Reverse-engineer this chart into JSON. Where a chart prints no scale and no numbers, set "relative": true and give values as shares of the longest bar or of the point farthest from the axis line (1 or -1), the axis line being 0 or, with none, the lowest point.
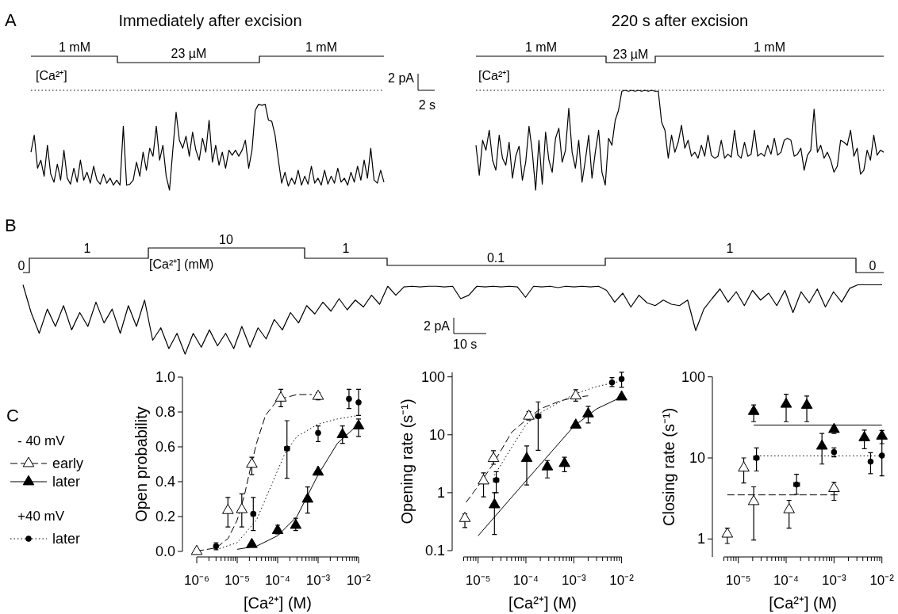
{
  "chart_data": [
    {
      "type": "line",
      "title": "Immediately after excision",
      "relative": true,
      "tick_labels": false,
      "annotations": [
        "A",
        "1 mM",
        "23 µM",
        "1 mM",
        "[Ca²⁺]",
        "2 pA",
        "2 s"
      ],
      "ref_lines": [
        {
          "axis": "y",
          "value": 0,
          "line_style": "dotted"
        }
      ],
      "categories": [
        null,
        null,
        null,
        null,
        null,
        null,
        null,
        null,
        null,
        null,
        null,
        null,
        null,
        null,
        null,
        null,
        null,
        null,
        null,
        null,
        null,
        null,
        null,
        null,
        null,
        null,
        null,
        null,
        null,
        null,
        null,
        null,
        null,
        null,
        null,
        null,
        null,
        null,
        null,
        null,
        null,
        null,
        null,
        null,
        null,
        null,
        null,
        null,
        null,
        null,
        null,
        null,
        null,
        null,
        null,
        null,
        null,
        null,
        null,
        null,
        null,
        null,
        null,
        null,
        null,
        null,
        null,
        null,
        null,
        null,
        null,
        null,
        null,
        null,
        null,
        null,
        null,
        null,
        null,
        null,
        null,
        null,
        null,
        null,
        null,
        null,
        null,
        null,
        null,
        null,
        null,
        null,
        null,
        null,
        null,
        null,
        null,
        null,
        null,
        null,
        null,
        null,
        null,
        null,
        null,
        null,
        null,
        null
      ],
      "series": [
        {
          "type": "line",
          "color": "#000000",
          "values": [
            -0.62,
            -0.45,
            -0.78,
            -0.7,
            -0.86,
            -0.55,
            -0.84,
            -0.92,
            -0.74,
            -0.9,
            -0.6,
            -0.88,
            -0.94,
            -0.78,
            -0.92,
            -0.7,
            -0.9,
            -0.82,
            -0.93,
            -0.76,
            -0.9,
            -0.94,
            -0.84,
            -0.93,
            -0.88,
            -0.95,
            -0.9,
            -0.95,
            -0.36,
            -0.95,
            -0.94,
            -0.9,
            -0.72,
            -0.86,
            -0.62,
            -0.8,
            -0.58,
            -0.66,
            -0.36,
            -0.7,
            -0.55,
            -0.86,
            -1,
            -0.6,
            -0.22,
            -0.5,
            -0.58,
            -0.46,
            -0.66,
            -0.42,
            -0.6,
            -0.7,
            -0.48,
            -0.62,
            -0.3,
            -0.72,
            -0.55,
            -0.75,
            -0.62,
            -0.78,
            -0.6,
            -0.65,
            -0.6,
            -0.66,
            -0.6,
            -0.5,
            -0.78,
            -0.6,
            -0.2,
            -0.14,
            -0.15,
            -0.14,
            -0.3,
            -0.31,
            -0.45,
            -0.7,
            -0.93,
            -0.82,
            -0.96,
            -0.88,
            -0.94,
            -0.8,
            -0.95,
            -0.86,
            -0.94,
            -0.76,
            -0.93,
            -0.88,
            -0.95,
            -0.8,
            -0.94,
            -0.86,
            -0.93,
            -0.78,
            -0.92,
            -0.88,
            -0.95,
            -0.82,
            -0.92,
            -0.76,
            -0.9,
            -0.7,
            -0.88,
            -0.58,
            -0.9,
            -0.93,
            -0.8,
            -0.92
          ]
        }
      ]
    },
    {
      "type": "line",
      "title": "220 s after excision",
      "relative": true,
      "tick_labels": false,
      "annotations": [
        "1 mM",
        "23 µM",
        "1 mM",
        "[Ca²⁺]"
      ],
      "ref_lines": [
        {
          "axis": "y",
          "value": 0,
          "line_style": "dotted"
        }
      ],
      "categories": [
        null,
        null,
        null,
        null,
        null,
        null,
        null,
        null,
        null,
        null,
        null,
        null,
        null,
        null,
        null,
        null,
        null,
        null,
        null,
        null,
        null,
        null,
        null,
        null,
        null,
        null,
        null,
        null,
        null,
        null,
        null,
        null,
        null,
        null,
        null,
        null,
        null,
        null,
        null,
        null,
        null,
        null,
        null,
        null,
        null,
        null,
        null,
        null,
        null,
        null,
        null,
        null,
        null,
        null,
        null,
        null,
        null,
        null,
        null,
        null,
        null,
        null,
        null,
        null,
        null,
        null,
        null,
        null,
        null,
        null,
        null,
        null,
        null,
        null,
        null,
        null,
        null,
        null,
        null,
        null,
        null,
        null,
        null,
        null,
        null,
        null,
        null,
        null,
        null,
        null,
        null,
        null,
        null,
        null,
        null,
        null,
        null,
        null,
        null,
        null,
        null,
        null,
        null,
        null,
        null,
        null,
        null,
        null,
        null,
        null,
        null,
        null,
        null,
        null,
        null,
        null,
        null,
        null,
        null,
        null,
        null,
        null,
        null,
        null
      ],
      "series": [
        {
          "type": "line",
          "color": "#000000",
          "values": [
            -0.55,
            -0.85,
            -0.5,
            -0.6,
            -0.4,
            -0.7,
            -0.8,
            -0.45,
            -0.68,
            -0.75,
            -0.52,
            -0.88,
            -0.66,
            -0.56,
            -0.9,
            -0.72,
            -0.36,
            -0.62,
            -1,
            -0.5,
            -0.94,
            -0.42,
            -0.7,
            -0.82,
            -0.48,
            -0.38,
            -0.72,
            -0.6,
            -0.18,
            -0.62,
            -0.78,
            -0.5,
            -0.92,
            -0.7,
            -0.45,
            -0.88,
            -0.62,
            -0.4,
            -0.82,
            -0.95,
            -0.48,
            -0.55,
            -0.3,
            -0.2,
            -0.01,
            0,
            -0.01,
            0,
            -0.01,
            0,
            -0.01,
            0,
            -0.01,
            0,
            -0.01,
            -0.01,
            -0.32,
            -0.4,
            -0.68,
            -0.45,
            -0.62,
            -0.52,
            -0.35,
            -0.58,
            -0.5,
            -0.66,
            -0.62,
            -0.68,
            -0.55,
            -0.66,
            -0.45,
            -0.65,
            -0.68,
            -0.66,
            -0.5,
            -0.68,
            -0.64,
            -0.67,
            -0.4,
            -0.65,
            -0.68,
            -0.52,
            -0.66,
            -0.64,
            -0.4,
            -0.66,
            -0.63,
            -0.66,
            -0.55,
            -0.64,
            -0.48,
            -0.65,
            -0.62,
            -0.5,
            -0.48,
            -0.5,
            -0.66,
            -0.64,
            -0.58,
            -0.8,
            -0.65,
            -0.6,
            -0.19,
            -0.62,
            -0.55,
            -0.68,
            -0.62,
            -0.7,
            -0.82,
            -0.76,
            -0.5,
            -0.52,
            -0.55,
            -0.4,
            -0.66,
            -0.58,
            -0.84,
            -0.8,
            -0.6,
            -0.7,
            -0.45,
            -0.65,
            -0.6,
            -0.62
          ]
        }
      ]
    },
    {
      "type": "line",
      "relative": true,
      "tick_labels": false,
      "annotations": [
        "B",
        "0",
        "1",
        "10",
        "1",
        "0.1",
        "1",
        "0",
        "[Ca²⁺] (mM)",
        "2 pA",
        "10 s"
      ],
      "categories": [
        null,
        null,
        null,
        null,
        null,
        null,
        null,
        null,
        null,
        null,
        null,
        null,
        null,
        null,
        null,
        null,
        null,
        null,
        null,
        null,
        null,
        null,
        null,
        null,
        null,
        null,
        null,
        null,
        null,
        null,
        null,
        null,
        null,
        null,
        null,
        null,
        null,
        null,
        null,
        null,
        null,
        null,
        null,
        null,
        null,
        null,
        null,
        null,
        null,
        null,
        null,
        null,
        null,
        null,
        null,
        null,
        null,
        null,
        null,
        null,
        null,
        null,
        null,
        null,
        null,
        null,
        null,
        null,
        null,
        null,
        null,
        null,
        null,
        null,
        null,
        null,
        null,
        null,
        null,
        null,
        null,
        null,
        null,
        null,
        null,
        null,
        null,
        null,
        null,
        null,
        null,
        null,
        null,
        null,
        null,
        null,
        null,
        null,
        null,
        null,
        null,
        null,
        null,
        null,
        null,
        null,
        null
      ],
      "series": [
        {
          "type": "line",
          "color": "#000000",
          "values": [
            1,
            0.6,
            0.3,
            0.65,
            0.4,
            0.7,
            0.35,
            0.6,
            0.4,
            0.75,
            0.45,
            0.65,
            0.3,
            0.7,
            0.4,
            0.78,
            0.2,
            0.38,
            0.08,
            0.3,
            0,
            0.3,
            0.1,
            0.35,
            0.12,
            0.3,
            0.08,
            0.4,
            0.1,
            0.38,
            0.22,
            0.5,
            0.35,
            0.6,
            0.45,
            0.7,
            0.58,
            0.75,
            0.62,
            0.8,
            0.64,
            0.78,
            0.68,
            0.85,
            0.72,
            0.98,
            0.85,
            0.97,
            0.98,
            0.97,
            0.98,
            0.98,
            0.97,
            0.98,
            0.8,
            0.85,
            0.98,
            0.97,
            0.98,
            0.97,
            0.98,
            0.97,
            0.82,
            0.98,
            0.97,
            0.98,
            0.96,
            0.98,
            0.97,
            0.98,
            0.97,
            0.98,
            0.92,
            0.75,
            0.88,
            0.68,
            0.85,
            0.74,
            0.7,
            0.78,
            0.72,
            0.7,
            0.78,
            0.34,
            0.65,
            0.8,
            0.94,
            0.75,
            0.9,
            0.7,
            0.92,
            0.78,
            0.88,
            0.7,
            0.92,
            0.6,
            0.9,
            0.74,
            0.94,
            0.68,
            0.9,
            0.75,
            0.95,
            1,
            1,
            1,
            1
          ]
        }
      ]
    },
    {
      "type": "scatter",
      "log": "x",
      "xlabel": "[Ca²⁺] (M)",
      "ylabel": "Open probability",
      "legend": "left",
      "annotations": [
        "C",
        "- 40 mV",
        "+40 mV"
      ],
      "xlim": [
        1e-06,
        0.01
      ],
      "ylim": [
        0,
        1
      ],
      "xticks": [
        {
          "value": 1e-06,
          "label": "10⁻⁶"
        },
        {
          "value": 2e-06,
          "label": null
        },
        {
          "value": 3e-06,
          "label": null
        },
        {
          "value": 4e-06,
          "label": null
        },
        {
          "value": 5e-06,
          "label": null
        },
        {
          "value": 6e-06,
          "label": null
        },
        {
          "value": 7e-06,
          "label": null
        },
        {
          "value": 8e-06,
          "label": null
        },
        {
          "value": 9e-06,
          "label": null
        },
        {
          "value": 1e-05,
          "label": "10⁻⁵"
        },
        {
          "value": 2e-05,
          "label": null
        },
        {
          "value": 3e-05,
          "label": null
        },
        {
          "value": 4e-05,
          "label": null
        },
        {
          "value": 5e-05,
          "label": null
        },
        {
          "value": 6e-05,
          "label": null
        },
        {
          "value": 7e-05,
          "label": null
        },
        {
          "value": 8e-05,
          "label": null
        },
        {
          "value": 9e-05,
          "label": null
        },
        {
          "value": 0.0001,
          "label": "10⁻⁴"
        },
        {
          "value": 0.0002,
          "label": null
        },
        {
          "value": 0.0003,
          "label": null
        },
        {
          "value": 0.0004,
          "label": null
        },
        {
          "value": 0.0005,
          "label": null
        },
        {
          "value": 0.0006,
          "label": null
        },
        {
          "value": 0.0007,
          "label": null
        },
        {
          "value": 0.0008,
          "label": null
        },
        {
          "value": 0.0009,
          "label": null
        },
        {
          "value": 0.001,
          "label": "10⁻³"
        },
        {
          "value": 0.002,
          "label": null
        },
        {
          "value": 0.003,
          "label": null
        },
        {
          "value": 0.004,
          "label": null
        },
        {
          "value": 0.005,
          "label": null
        },
        {
          "value": 0.006,
          "label": null
        },
        {
          "value": 0.007,
          "label": null
        },
        {
          "value": 0.008,
          "label": null
        },
        {
          "value": 0.009,
          "label": null
        },
        {
          "value": 0.01,
          "label": "10⁻²"
        }
      ],
      "yticks": [
        {
          "value": 0,
          "label": "0.0"
        },
        0.2,
        0.4,
        0.6,
        0.8,
        {
          "value": 1,
          "label": "1.0"
        }
      ],
      "series": [
        {
          "name": "early",
          "type": "scatter",
          "marker": "triangle",
          "line_style": "dashed",
          "color": "#ffffff",
          "x": [
            1e-06,
            5.9e-06,
            1.3e-05,
            2.3e-05,
            0.00012,
            0.001
          ],
          "values": [
            0,
            0.235,
            0.24,
            0.5,
            0.88,
            0.89
          ],
          "errors": [
            null,
            [
              0.14,
              0.31
            ],
            [
              0.14,
              0.33
            ],
            [
              0.44,
              0.54
            ],
            [
              0.83,
              0.93
            ],
            [
              0.87,
              0.91
            ]
          ]
        },
        {
          "name": "later",
          "type": "scatter",
          "marker": "triangle",
          "line_style": "solid",
          "color": "#000000",
          "x": [
            2.3e-05,
            0.0001,
            0.00028,
            0.00055,
            0.001,
            0.004,
            0.01
          ],
          "values": [
            0.04,
            0.12,
            0.15,
            0.3,
            0.455,
            0.67,
            0.72
          ],
          "errors": [
            null,
            [
              0.1,
              0.15
            ],
            [
              0.12,
              0.19
            ],
            [
              0.22,
              0.37
            ],
            null,
            [
              0.62,
              0.72
            ],
            [
              0.66,
              0.76
            ]
          ]
        },
        {
          "name": "later",
          "type": "scatter",
          "marker": "circle",
          "line_style": "dotted",
          "color": "#000000",
          "x": [
            3e-06,
            2.5e-05,
            0.00017,
            0.001,
            0.0058,
            0.01
          ],
          "values": [
            0.03,
            0.215,
            0.59,
            0.68,
            0.875,
            0.855
          ],
          "errors": [
            [
              0.01,
              0.05
            ],
            [
              0.12,
              0.31
            ],
            [
              0.42,
              0.75
            ],
            [
              0.63,
              0.72
            ],
            [
              0.82,
              0.93
            ],
            [
              0.78,
              0.93
            ]
          ],
          "xerrors": [
            null,
            [
              2.2e-05,
              2.8e-05
            ],
            [
              0.00015,
              0.000195
            ],
            null,
            null,
            null
          ]
        },
        {
          "type": "line",
          "line_style": "dashed",
          "color": "#000000",
          "x": [
            1e-06,
            3e-06,
            6e-06,
            1e-05,
            1.5e-05,
            2e-05,
            3e-05,
            5e-05,
            0.0001,
            0.0003,
            0.0007
          ],
          "values": [
            0.002,
            0.02,
            0.075,
            0.18,
            0.32,
            0.45,
            0.62,
            0.78,
            0.87,
            0.9,
            0.9
          ]
        },
        {
          "type": "line",
          "line_style": "solid",
          "color": "#000000",
          "x": [
            1e-05,
            3e-05,
            0.0001,
            0.0003,
            0.001,
            0.003,
            0.01
          ],
          "values": [
            0.012,
            0.03,
            0.09,
            0.2,
            0.44,
            0.62,
            0.73
          ]
        },
        {
          "type": "line",
          "line_style": "dotted",
          "color": "#000000",
          "x": [
            3e-06,
            1e-05,
            3e-05,
            7e-05,
            0.00015,
            0.0003,
            0.001,
            0.003,
            0.01
          ],
          "values": [
            0.01,
            0.05,
            0.18,
            0.38,
            0.56,
            0.66,
            0.73,
            0.76,
            0.78
          ]
        }
      ]
    },
    {
      "type": "scatter",
      "log": "xy",
      "xlabel": "[Ca²⁺] (M)",
      "ylabel": "Opening rate (s⁻¹)",
      "xlim": [
        5e-06,
        0.01
      ],
      "ylim": [
        0.1,
        120
      ],
      "xticks": [
        {
          "value": 5e-06,
          "label": null
        },
        {
          "value": 6e-06,
          "label": null
        },
        {
          "value": 7e-06,
          "label": null
        },
        {
          "value": 8e-06,
          "label": null
        },
        {
          "value": 9e-06,
          "label": null
        },
        {
          "value": 1e-05,
          "label": "10⁻⁵"
        },
        {
          "value": 2e-05,
          "label": null
        },
        {
          "value": 3e-05,
          "label": null
        },
        {
          "value": 4e-05,
          "label": null
        },
        {
          "value": 5e-05,
          "label": null
        },
        {
          "value": 6e-05,
          "label": null
        },
        {
          "value": 7e-05,
          "label": null
        },
        {
          "value": 8e-05,
          "label": null
        },
        {
          "value": 9e-05,
          "label": null
        },
        {
          "value": 0.0001,
          "label": "10⁻⁴"
        },
        {
          "value": 0.0002,
          "label": null
        },
        {
          "value": 0.0003,
          "label": null
        },
        {
          "value": 0.0004,
          "label": null
        },
        {
          "value": 0.0005,
          "label": null
        },
        {
          "value": 0.0006,
          "label": null
        },
        {
          "value": 0.0007,
          "label": null
        },
        {
          "value": 0.0008,
          "label": null
        },
        {
          "value": 0.0009,
          "label": null
        },
        {
          "value": 0.001,
          "label": "10⁻³"
        },
        {
          "value": 0.002,
          "label": null
        },
        {
          "value": 0.003,
          "label": null
        },
        {
          "value": 0.004,
          "label": null
        },
        {
          "value": 0.005,
          "label": null
        },
        {
          "value": 0.006,
          "label": null
        },
        {
          "value": 0.007,
          "label": null
        },
        {
          "value": 0.008,
          "label": null
        },
        {
          "value": 0.009,
          "label": null
        },
        {
          "value": 0.01,
          "label": "10⁻²"
        }
      ],
      "yticks": [
        0.1,
        1,
        10,
        100
      ],
      "series": [
        {
          "type": "scatter",
          "marker": "triangle",
          "color": "#ffffff",
          "x": [
            5.3e-06,
            1.3e-05,
            2.1e-05,
            0.000115,
            0.0011
          ],
          "values": [
            0.36,
            1.6,
            3.9,
            21,
            47
          ],
          "errors": [
            [
              0.25,
              0.43
            ],
            [
              0.85,
              2.2
            ],
            [
              3.1,
              5.3
            ],
            [
              18,
              25
            ],
            [
              38,
              60
            ]
          ]
        },
        {
          "type": "scatter",
          "marker": "triangle",
          "color": "#000000",
          "x": [
            2.2e-05,
            0.000104,
            0.00028,
            0.00064,
            0.0011,
            0.002,
            0.01
          ],
          "values": [
            0.62,
            3.9,
            2.8,
            3.2,
            14.7,
            23,
            45
          ],
          "errors": [
            [
              0.19,
              1
            ],
            [
              1.36,
              6.4
            ],
            [
              1.8,
              3.6
            ],
            [
              2.3,
              4.1
            ],
            null,
            [
              16,
              31
            ],
            null
          ]
        },
        {
          "type": "scatter",
          "marker": "circle",
          "color": "#000000",
          "x": [
            2.4e-05,
            0.00018,
            0.0063,
            0.01
          ],
          "values": [
            1.65,
            21,
            80,
            92
          ],
          "errors": [
            [
              1,
              2.3
            ],
            [
              5.4,
              37
            ],
            [
              68,
              97
            ],
            [
              66,
              120
            ]
          ],
          "xerrors": [
            [
              2.1e-05,
              2.7e-05
            ],
            [
              0.00016,
              0.000205
            ],
            null,
            null
          ]
        },
        {
          "type": "line",
          "line_style": "dashed",
          "color": "#000000",
          "x": [
            5.6e-06,
            1e-05,
            2e-05,
            5e-05,
            0.0001,
            0.0002,
            0.0005,
            0.001,
            0.002
          ],
          "values": [
            0.68,
            1.3,
            3,
            11,
            18,
            28,
            38,
            44,
            47
          ]
        },
        {
          "type": "line",
          "line_style": "solid",
          "color": "#000000",
          "x": [
            1e-05,
            0.0001,
            0.001,
            0.003,
            0.01
          ],
          "values": [
            0.18,
            1.6,
            14,
            28,
            45
          ]
        },
        {
          "type": "line",
          "line_style": "dotted",
          "color": "#000000",
          "x": [
            2.2e-05,
            5e-05,
            0.0001,
            0.0002,
            0.001,
            0.003,
            0.01
          ],
          "values": [
            2,
            6,
            15,
            24,
            50,
            68,
            85
          ]
        }
      ]
    },
    {
      "type": "scatter",
      "log": "xy",
      "xlabel": "[Ca²⁺] (M)",
      "ylabel": "Closing rate (s⁻¹)",
      "xlim": [
        5e-06,
        0.01
      ],
      "ylim": [
        0.6,
        100
      ],
      "xticks": [
        {
          "value": 5e-06,
          "label": null
        },
        {
          "value": 6e-06,
          "label": null
        },
        {
          "value": 7e-06,
          "label": null
        },
        {
          "value": 8e-06,
          "label": null
        },
        {
          "value": 9e-06,
          "label": null
        },
        {
          "value": 1e-05,
          "label": "10⁻⁵"
        },
        {
          "value": 2e-05,
          "label": null
        },
        {
          "value": 3e-05,
          "label": null
        },
        {
          "value": 4e-05,
          "label": null
        },
        {
          "value": 5e-05,
          "label": null
        },
        {
          "value": 6e-05,
          "label": null
        },
        {
          "value": 7e-05,
          "label": null
        },
        {
          "value": 8e-05,
          "label": null
        },
        {
          "value": 9e-05,
          "label": null
        },
        {
          "value": 0.0001,
          "label": "10⁻⁴"
        },
        {
          "value": 0.0002,
          "label": null
        },
        {
          "value": 0.0003,
          "label": null
        },
        {
          "value": 0.0004,
          "label": null
        },
        {
          "value": 0.0005,
          "label": null
        },
        {
          "value": 0.0006,
          "label": null
        },
        {
          "value": 0.0007,
          "label": null
        },
        {
          "value": 0.0008,
          "label": null
        },
        {
          "value": 0.0009,
          "label": null
        },
        {
          "value": 0.001,
          "label": "10⁻³"
        },
        {
          "value": 0.002,
          "label": null
        },
        {
          "value": 0.003,
          "label": null
        },
        {
          "value": 0.004,
          "label": null
        },
        {
          "value": 0.005,
          "label": null
        },
        {
          "value": 0.006,
          "label": null
        },
        {
          "value": 0.007,
          "label": null
        },
        {
          "value": 0.008,
          "label": null
        },
        {
          "value": 0.009,
          "label": null
        },
        {
          "value": 0.01,
          "label": "10⁻²"
        }
      ],
      "yticks": [
        1,
        10,
        100
      ],
      "series": [
        {
          "type": "scatter",
          "marker": "triangle",
          "color": "#ffffff",
          "x": [
            5.9e-06,
            1.3e-05,
            2.1e-05,
            0.000115,
            0.001
          ],
          "values": [
            1.15,
            7.5,
            2.9,
            2.3,
            4.2
          ],
          "errors": [
            [
              0.88,
              1.36
            ],
            [
              4.9,
              10
            ],
            [
              0.97,
              4.4
            ],
            [
              1.36,
              3
            ],
            [
              3,
              5
            ]
          ]
        },
        {
          "type": "scatter",
          "marker": "triangle",
          "color": "#000000",
          "x": [
            2.1e-05,
            0.0001,
            0.00027,
            0.00056,
            0.001,
            0.0043,
            0.01
          ],
          "values": [
            37.5,
            46,
            44.7,
            14,
            22.5,
            17.8,
            18.6
          ],
          "errors": [
            [
              28,
              45
            ],
            [
              28,
              61
            ],
            [
              28,
              58
            ],
            [
              8.4,
              20
            ],
            [
              20,
              24
            ],
            [
              13,
              22
            ],
            [
              15,
              21.8
            ]
          ]
        },
        {
          "type": "scatter",
          "marker": "circle",
          "color": "#000000",
          "x": [
            2.4e-05,
            0.000165,
            0.001,
            0.0058,
            0.01
          ],
          "values": [
            10,
            4.7,
            11.8,
            9,
            10.7
          ],
          "errors": [
            [
              6.9,
              13.3
            ],
            [
              3.55,
              6.3
            ],
            [
              10.3,
              13.3
            ],
            [
              6.4,
              11.6
            ],
            [
              6,
              17.5
            ]
          ],
          "xerrors": [
            [
              2.1e-05,
              2.7e-05
            ],
            [
              0.000145,
              0.00019
            ],
            null,
            null,
            null
          ]
        },
        {
          "type": "line",
          "line_style": "dashed",
          "color": "#000000",
          "x": [
            5.9e-06,
            0.0012
          ],
          "values": [
            3.5,
            3.5
          ]
        },
        {
          "type": "line",
          "line_style": "solid",
          "color": "#000000",
          "x": [
            2.1e-05,
            0.01
          ],
          "values": [
            25.4,
            25.4
          ]
        },
        {
          "type": "line",
          "line_style": "dotted",
          "color": "#000000",
          "x": [
            2.4e-05,
            0.01
          ],
          "values": [
            10.6,
            10.6
          ]
        }
      ]
    }
  ]
}
